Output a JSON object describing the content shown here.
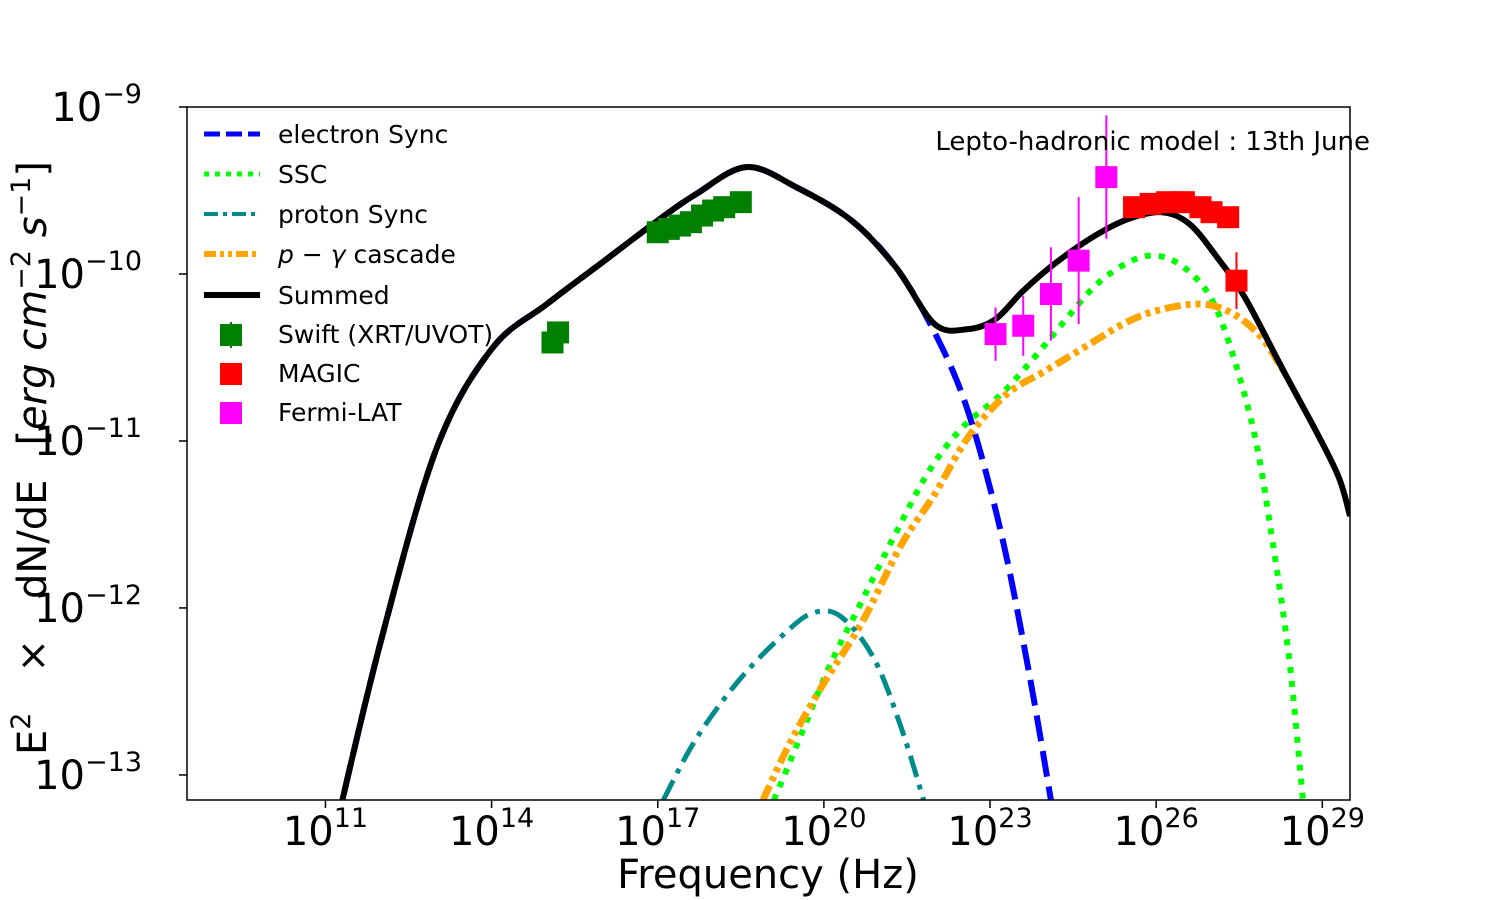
{
  "chart_data": {
    "type": "line",
    "title": "",
    "annotation": "Lepto-hadronic model : 13th June",
    "xlabel": "Frequency (Hz)",
    "ylabel_parts": [
      "E",
      "2",
      "×",
      "dN/dE",
      "[",
      "erg cm",
      "−2",
      " s",
      "−1",
      "]"
    ],
    "x_scale": "log",
    "y_scale": "log",
    "xlim_log10": [
      8.5,
      29.5
    ],
    "ylim_log10": [
      -13.15,
      -9.0
    ],
    "x_ticks": [
      {
        "base": "10",
        "exp": "11",
        "log": 11
      },
      {
        "base": "10",
        "exp": "14",
        "log": 14
      },
      {
        "base": "10",
        "exp": "17",
        "log": 17
      },
      {
        "base": "10",
        "exp": "20",
        "log": 20
      },
      {
        "base": "10",
        "exp": "23",
        "log": 23
      },
      {
        "base": "10",
        "exp": "26",
        "log": 26
      },
      {
        "base": "10",
        "exp": "29",
        "log": 29
      }
    ],
    "y_ticks": [
      {
        "base": "10",
        "exp": "−9",
        "log": -9
      },
      {
        "base": "10",
        "exp": "−10",
        "log": -10
      },
      {
        "base": "10",
        "exp": "−11",
        "log": -11
      },
      {
        "base": "10",
        "exp": "−12",
        "log": -12
      },
      {
        "base": "10",
        "exp": "−13",
        "log": -13
      }
    ],
    "legend_position": "top-left",
    "series": [
      {
        "name": "electron Sync",
        "style": "dashed",
        "color": "#0000ff",
        "points": [
          [
            11.2,
            -13.3
          ],
          [
            12.0,
            -12.2
          ],
          [
            13.0,
            -11.05
          ],
          [
            14.0,
            -10.45
          ],
          [
            15.0,
            -10.18
          ],
          [
            16.0,
            -9.93
          ],
          [
            17.0,
            -9.68
          ],
          [
            17.7,
            -9.52
          ],
          [
            18.6,
            -9.36
          ],
          [
            19.5,
            -9.48
          ],
          [
            20.5,
            -9.68
          ],
          [
            21.3,
            -9.96
          ],
          [
            22.0,
            -10.35
          ],
          [
            22.6,
            -10.82
          ],
          [
            23.2,
            -11.55
          ],
          [
            23.7,
            -12.38
          ],
          [
            24.1,
            -13.15
          ]
        ]
      },
      {
        "name": "SSC",
        "style": "dotted",
        "color": "#00ff00",
        "points": [
          [
            19.1,
            -13.15
          ],
          [
            19.6,
            -12.75
          ],
          [
            20.1,
            -12.35
          ],
          [
            20.7,
            -11.95
          ],
          [
            21.3,
            -11.55
          ],
          [
            21.9,
            -11.18
          ],
          [
            22.5,
            -10.92
          ],
          [
            23.2,
            -10.72
          ],
          [
            23.8,
            -10.5
          ],
          [
            24.3,
            -10.3
          ],
          [
            24.9,
            -10.07
          ],
          [
            25.5,
            -9.93
          ],
          [
            26.0,
            -9.89
          ],
          [
            26.5,
            -9.96
          ],
          [
            27.0,
            -10.15
          ],
          [
            27.4,
            -10.5
          ],
          [
            27.8,
            -11.0
          ],
          [
            28.1,
            -11.6
          ],
          [
            28.4,
            -12.3
          ],
          [
            28.65,
            -13.15
          ]
        ]
      },
      {
        "name": "proton Sync",
        "style": "dashdot",
        "color": "#008b8b",
        "points": [
          [
            17.1,
            -13.15
          ],
          [
            17.7,
            -12.78
          ],
          [
            18.5,
            -12.42
          ],
          [
            19.3,
            -12.15
          ],
          [
            19.8,
            -12.03
          ],
          [
            20.3,
            -12.05
          ],
          [
            20.9,
            -12.3
          ],
          [
            21.4,
            -12.72
          ],
          [
            21.8,
            -13.15
          ]
        ]
      },
      {
        "name": "$p-\\gamma$ cascade",
        "style": "dashdot-thick",
        "color": "#ffa500",
        "points": [
          [
            18.9,
            -13.15
          ],
          [
            19.4,
            -12.8
          ],
          [
            20.0,
            -12.45
          ],
          [
            20.7,
            -12.08
          ],
          [
            21.4,
            -11.62
          ],
          [
            22.0,
            -11.32
          ],
          [
            22.6,
            -10.98
          ],
          [
            23.3,
            -10.72
          ],
          [
            24.0,
            -10.58
          ],
          [
            24.8,
            -10.42
          ],
          [
            25.4,
            -10.3
          ],
          [
            26.0,
            -10.22
          ],
          [
            26.8,
            -10.18
          ],
          [
            27.4,
            -10.24
          ],
          [
            27.9,
            -10.38
          ],
          [
            28.3,
            -10.58
          ]
        ]
      },
      {
        "name": "Summed",
        "style": "solid",
        "color": "#000000",
        "points": [
          [
            11.2,
            -13.3
          ],
          [
            12.0,
            -12.2
          ],
          [
            13.0,
            -11.05
          ],
          [
            14.0,
            -10.45
          ],
          [
            15.0,
            -10.18
          ],
          [
            16.0,
            -9.93
          ],
          [
            17.0,
            -9.68
          ],
          [
            17.7,
            -9.52
          ],
          [
            18.6,
            -9.36
          ],
          [
            19.5,
            -9.48
          ],
          [
            20.5,
            -9.68
          ],
          [
            21.3,
            -9.96
          ],
          [
            22.0,
            -10.3
          ],
          [
            22.6,
            -10.33
          ],
          [
            23.1,
            -10.27
          ],
          [
            23.6,
            -10.1
          ],
          [
            24.2,
            -9.93
          ],
          [
            24.9,
            -9.77
          ],
          [
            25.5,
            -9.67
          ],
          [
            26.1,
            -9.63
          ],
          [
            26.6,
            -9.7
          ],
          [
            27.1,
            -9.9
          ],
          [
            27.6,
            -10.14
          ],
          [
            28.3,
            -10.58
          ],
          [
            28.9,
            -10.95
          ],
          [
            29.3,
            -11.22
          ],
          [
            29.5,
            -11.45
          ]
        ]
      }
    ],
    "data_sets": [
      {
        "name": "Swift (XRT/UVOT)",
        "color": "#008000",
        "points": [
          [
            15.1,
            -10.41
          ],
          [
            15.2,
            -10.35
          ],
          [
            17.0,
            -9.75
          ],
          [
            17.2,
            -9.73
          ],
          [
            17.4,
            -9.71
          ],
          [
            17.6,
            -9.69
          ],
          [
            17.8,
            -9.65
          ],
          [
            18.0,
            -9.62
          ],
          [
            18.2,
            -9.6
          ],
          [
            18.5,
            -9.57
          ]
        ]
      },
      {
        "name": "MAGIC",
        "color": "#ff0000",
        "points": [
          [
            25.6,
            -9.6
          ],
          [
            25.9,
            -9.58
          ],
          [
            26.2,
            -9.57
          ],
          [
            26.5,
            -9.57
          ],
          [
            26.8,
            -9.6
          ],
          [
            27.0,
            -9.63
          ],
          [
            27.3,
            -9.66
          ],
          [
            27.45,
            -10.04
          ]
        ],
        "yerr": [
          0.0,
          0.0,
          0.0,
          0.0,
          0.0,
          0.0,
          0.0,
          0.17
        ]
      },
      {
        "name": "Fermi-LAT",
        "color": "#ff00ff",
        "points": [
          [
            23.1,
            -10.36
          ],
          [
            23.6,
            -10.31
          ],
          [
            24.1,
            -10.12
          ],
          [
            24.6,
            -9.92
          ],
          [
            25.1,
            -9.42
          ]
        ],
        "yerr": [
          0.16,
          0.18,
          0.28,
          0.38,
          0.37
        ]
      }
    ]
  }
}
